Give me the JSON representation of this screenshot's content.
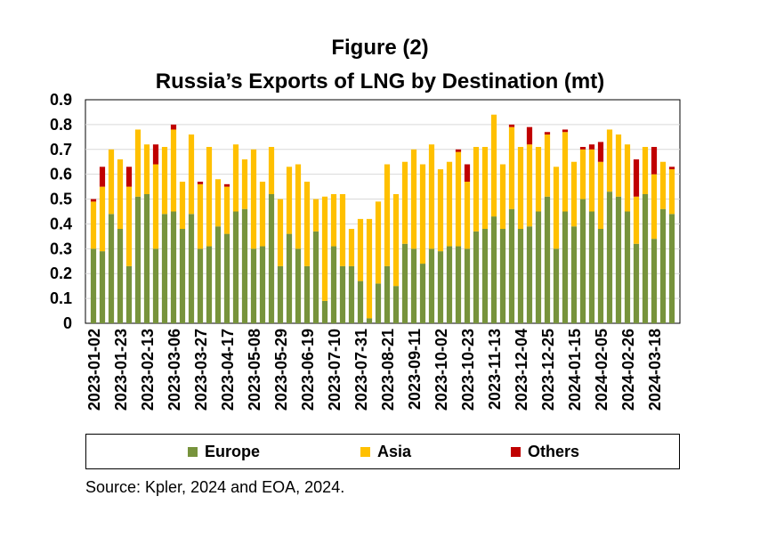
{
  "title_line1": "Figure (2)",
  "title_line2": "Russia’s Exports of LNG by Destination (mt)",
  "source": "Source: Kpler, 2024 and EOA, 2024.",
  "colors": {
    "Europe": "#77933c",
    "Asia": "#ffc000",
    "Others": "#c00000",
    "grid": "#d9d9d9"
  },
  "chart_data": {
    "type": "bar",
    "stacked": true,
    "title": "Russia’s Exports of LNG by Destination (mt)",
    "ylim": [
      0,
      0.9
    ],
    "yticks": [
      "0",
      "0.1",
      "0.2",
      "0.3",
      "0.4",
      "0.5",
      "0.6",
      "0.7",
      "0.8",
      "0.9"
    ],
    "tick_labels": [
      "2023-01-02",
      "2023-01-23",
      "2023-02-13",
      "2023-03-06",
      "2023-03-27",
      "2023-04-17",
      "2023-05-08",
      "2023-05-29",
      "2023-06-19",
      "2023-07-10",
      "2023-07-31",
      "2023-08-21",
      "2023-09-11",
      "2023-10-02",
      "2023-10-23",
      "2023-11-13",
      "2023-12-04",
      "2023-12-25",
      "2024-01-15",
      "2024-02-05",
      "2024-02-26",
      "2024-03-18"
    ],
    "grid": true,
    "legend": "bottom",
    "series": [
      {
        "name": "Europe",
        "values": [
          0.3,
          0.29,
          0.44,
          0.38,
          0.23,
          0.51,
          0.52,
          0.3,
          0.44,
          0.45,
          0.38,
          0.44,
          0.3,
          0.31,
          0.39,
          0.36,
          0.45,
          0.46,
          0.3,
          0.31,
          0.52,
          0.23,
          0.36,
          0.3,
          0.23,
          0.37,
          0.09,
          0.31,
          0.23,
          0.23,
          0.17,
          0.02,
          0.16,
          0.23,
          0.15,
          0.32,
          0.3,
          0.24,
          0.3,
          0.29,
          0.31,
          0.31,
          0.3,
          0.37,
          0.38,
          0.43,
          0.38,
          0.46,
          0.38,
          0.39,
          0.45,
          0.51,
          0.3,
          0.45,
          0.39,
          0.5,
          0.45,
          0.38,
          0.53,
          0.51,
          0.45,
          0.32,
          0.52,
          0.34,
          0.46,
          0.44
        ]
      },
      {
        "name": "Asia",
        "values": [
          0.19,
          0.26,
          0.26,
          0.28,
          0.32,
          0.27,
          0.2,
          0.34,
          0.27,
          0.33,
          0.19,
          0.32,
          0.26,
          0.4,
          0.19,
          0.19,
          0.27,
          0.2,
          0.4,
          0.26,
          0.19,
          0.27,
          0.27,
          0.34,
          0.34,
          0.13,
          0.42,
          0.21,
          0.29,
          0.15,
          0.25,
          0.4,
          0.33,
          0.41,
          0.37,
          0.33,
          0.4,
          0.4,
          0.42,
          0.33,
          0.34,
          0.38,
          0.27,
          0.34,
          0.33,
          0.41,
          0.26,
          0.33,
          0.33,
          0.33,
          0.26,
          0.25,
          0.33,
          0.32,
          0.26,
          0.2,
          0.25,
          0.27,
          0.25,
          0.25,
          0.27,
          0.19,
          0.19,
          0.26,
          0.19,
          0.18
        ]
      },
      {
        "name": "Others",
        "values": [
          0.01,
          0.08,
          0.0,
          0.0,
          0.08,
          0.0,
          0.0,
          0.08,
          0.0,
          0.02,
          0.0,
          0.0,
          0.01,
          0.0,
          0.0,
          0.01,
          0.0,
          0.0,
          0.0,
          0.0,
          0.0,
          0.0,
          0.0,
          0.0,
          0.0,
          0.0,
          0.0,
          0.0,
          0.0,
          0.0,
          0.0,
          0.0,
          0.0,
          0.0,
          0.0,
          0.0,
          0.0,
          0.0,
          0.0,
          0.0,
          0.0,
          0.01,
          0.07,
          0.0,
          0.0,
          0.0,
          0.0,
          0.01,
          0.0,
          0.07,
          0.0,
          0.01,
          0.0,
          0.01,
          0.0,
          0.01,
          0.02,
          0.08,
          0.0,
          0.0,
          0.0,
          0.15,
          0.0,
          0.11,
          0.0,
          0.01
        ]
      }
    ]
  }
}
